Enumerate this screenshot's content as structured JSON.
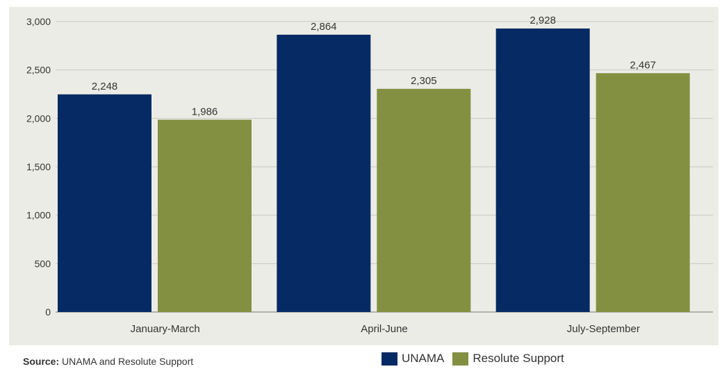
{
  "chart_data": {
    "type": "bar",
    "categories": [
      "January-March",
      "April-June",
      "July-September"
    ],
    "series": [
      {
        "name": "UNAMA",
        "values": [
          2248,
          2864,
          2928
        ],
        "color": "#062b64",
        "labels": [
          "2,248",
          "2,864",
          "2,928"
        ]
      },
      {
        "name": "Resolute Support",
        "values": [
          1986,
          2305,
          2467
        ],
        "color": "#839042",
        "labels": [
          "1,986",
          "2,305",
          "2,467"
        ]
      }
    ],
    "title": "",
    "xlabel": "",
    "ylabel": "",
    "ylim": [
      0,
      3000
    ],
    "yticks": [
      0,
      500,
      1000,
      1500,
      2000,
      2500,
      3000
    ],
    "ytick_labels": [
      "0",
      "500",
      "1,000",
      "1,500",
      "2,000",
      "2,500",
      "3,000"
    ],
    "grid": true,
    "background": "#ecece6",
    "legend_position": "bottom"
  },
  "source": {
    "label": "Source:",
    "text": "UNAMA and Resolute Support"
  }
}
